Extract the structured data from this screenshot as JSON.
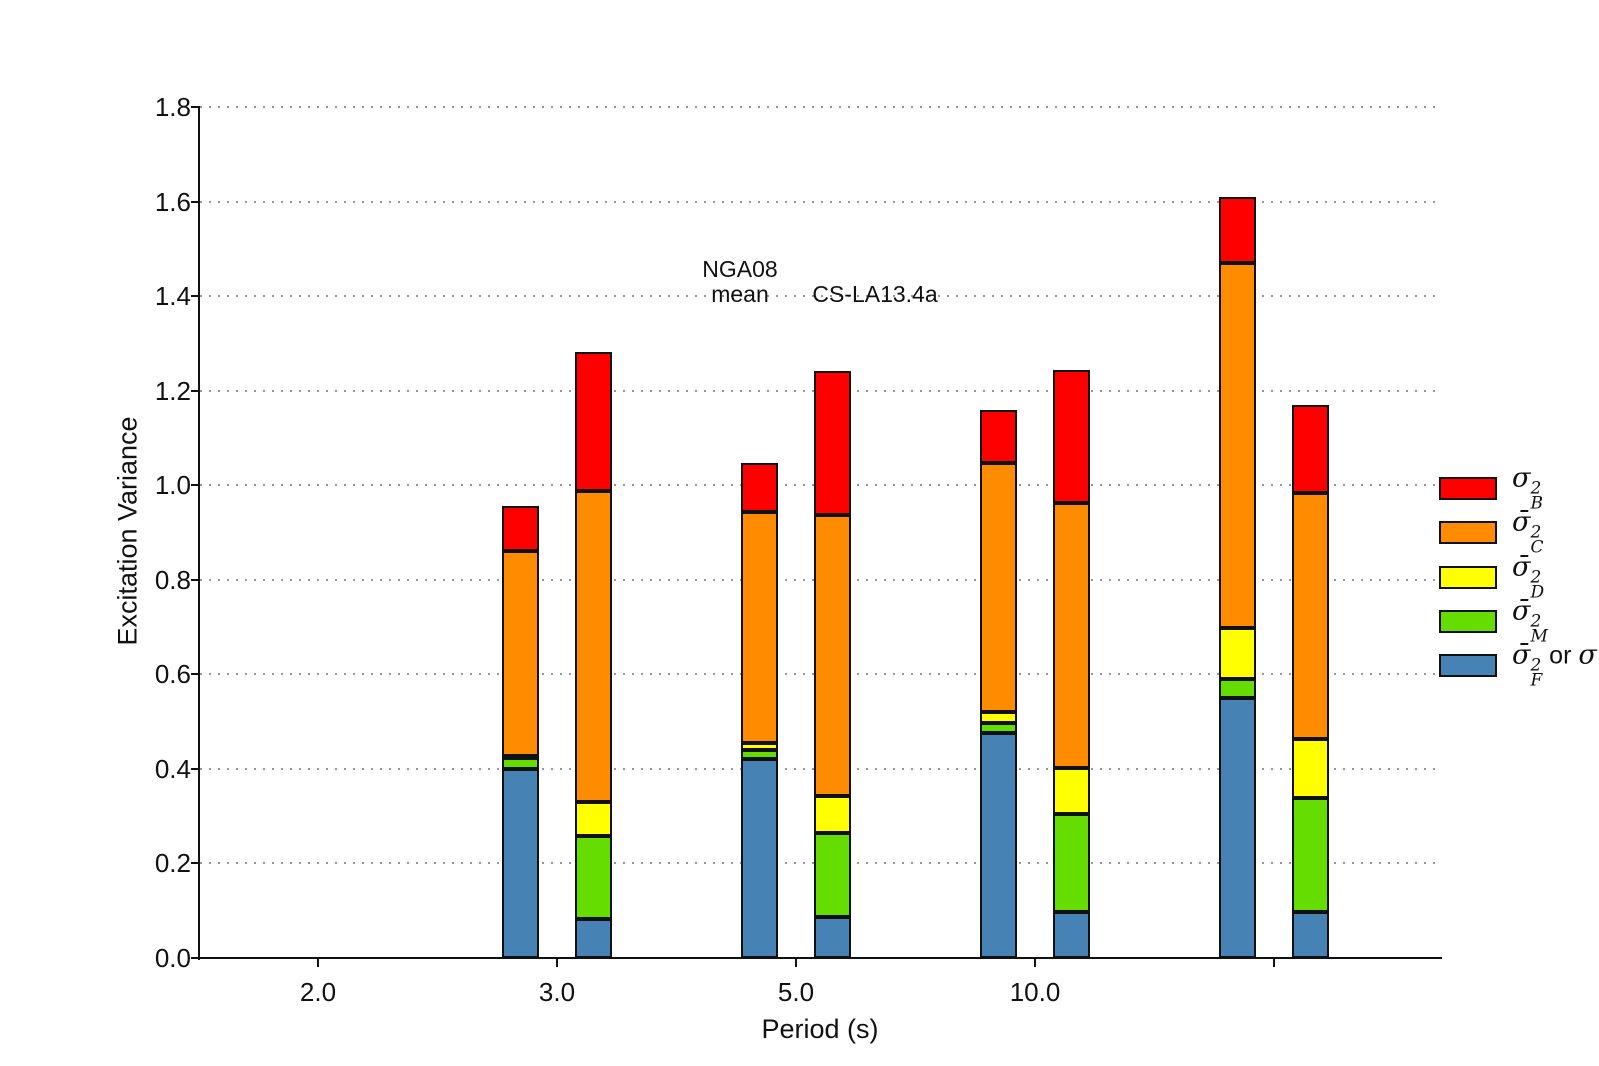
{
  "figure": {
    "y_axis": {
      "label": "Excitation Variance",
      "tick_labels": [
        "0.0",
        "0.2",
        "0.4",
        "0.6",
        "0.8",
        "1.0",
        "1.2",
        "1.4",
        "1.6",
        "1.8"
      ]
    },
    "x_axis": {
      "label": "Period (s)",
      "tick_labels": [
        "2.0",
        "3.0",
        "5.0",
        "10.0",
        ""
      ]
    },
    "annotations": [
      {
        "text": "NGA08\nmean"
      },
      {
        "text": "CS-LA13.4a"
      }
    ],
    "legend": {
      "items": [
        {
          "key": "sigma2_B",
          "color": "#FE0000",
          "sigma": "σ",
          "sup": "2",
          "sub": "B",
          "suffix_text": "",
          "suffix_sigma": ""
        },
        {
          "key": "sigma2_C",
          "color": "#FF8C00",
          "sigma": "σ̄",
          "sup": "2",
          "sub": "C",
          "suffix_text": "",
          "suffix_sigma": ""
        },
        {
          "key": "sigma2_D",
          "color": "#FFFF00",
          "sigma": "σ̄",
          "sup": "2",
          "sub": "D",
          "suffix_text": "",
          "suffix_sigma": ""
        },
        {
          "key": "sigma2_M",
          "color": "#66DD00",
          "sigma": "σ̄",
          "sup": "2",
          "sub": "M",
          "suffix_text": "",
          "suffix_sigma": ""
        },
        {
          "key": "sigma2_F",
          "color": "#4682B4",
          "sigma": "σ̄",
          "sup": "2",
          "sub": "F",
          "suffix_text": " or ",
          "suffix_sigma": "σ"
        }
      ]
    }
  },
  "chart_data": {
    "type": "bar",
    "stacked": true,
    "title": "",
    "xlabel": "Period (s)",
    "ylabel": "Excitation Variance",
    "ylim": [
      0,
      1.8
    ],
    "ytick_step": 0.2,
    "grid": "horizontal dotted",
    "legend_position": "outside right",
    "categories": [
      "2.0",
      "3.0",
      "5.0",
      "10.0",
      ""
    ],
    "series_labels": [
      "NGA08 mean",
      "CS-LA13.4a"
    ],
    "stack_order": [
      "sigma2_F",
      "sigma2_M",
      "sigma2_D",
      "sigma2_C",
      "sigma2_B"
    ],
    "colors": {
      "sigma2_B": "#FE0000",
      "sigma2_C": "#FF8C00",
      "sigma2_D": "#FFFF00",
      "sigma2_M": "#66DD00",
      "sigma2_F": "#4682B4"
    },
    "groups": [
      {
        "category": "2.0",
        "bars": []
      },
      {
        "category": "3.0",
        "bars": [
          {
            "series": "NGA08 mean",
            "total": 0.957,
            "segments": {
              "sigma2_F": 0.4,
              "sigma2_M": 0.022,
              "sigma2_D": 0.005,
              "sigma2_C": 0.433,
              "sigma2_B": 0.097
            }
          },
          {
            "series": "CS-LA13.4a",
            "total": 1.282,
            "segments": {
              "sigma2_F": 0.082,
              "sigma2_M": 0.177,
              "sigma2_D": 0.07,
              "sigma2_C": 0.659,
              "sigma2_B": 0.294
            }
          }
        ]
      },
      {
        "category": "5.0",
        "bars": [
          {
            "series": "NGA08 mean",
            "total": 1.048,
            "segments": {
              "sigma2_F": 0.42,
              "sigma2_M": 0.02,
              "sigma2_D": 0.015,
              "sigma2_C": 0.489,
              "sigma2_B": 0.104
            }
          },
          {
            "series": "CS-LA13.4a",
            "total": 1.242,
            "segments": {
              "sigma2_F": 0.087,
              "sigma2_M": 0.177,
              "sigma2_D": 0.079,
              "sigma2_C": 0.594,
              "sigma2_B": 0.305
            }
          }
        ]
      },
      {
        "category": "10.0",
        "bars": [
          {
            "series": "NGA08 mean",
            "total": 1.16,
            "segments": {
              "sigma2_F": 0.475,
              "sigma2_M": 0.023,
              "sigma2_D": 0.023,
              "sigma2_C": 0.525,
              "sigma2_B": 0.114
            }
          },
          {
            "series": "CS-LA13.4a",
            "total": 1.243,
            "segments": {
              "sigma2_F": 0.098,
              "sigma2_M": 0.207,
              "sigma2_D": 0.096,
              "sigma2_C": 0.562,
              "sigma2_B": 0.28
            }
          }
        ]
      },
      {
        "category": "",
        "bars": [
          {
            "series": "NGA08 mean",
            "total": 1.61,
            "segments": {
              "sigma2_F": 0.549,
              "sigma2_M": 0.041,
              "sigma2_D": 0.107,
              "sigma2_C": 0.774,
              "sigma2_B": 0.139
            }
          },
          {
            "series": "CS-LA13.4a",
            "total": 1.17,
            "segments": {
              "sigma2_F": 0.098,
              "sigma2_M": 0.241,
              "sigma2_D": 0.124,
              "sigma2_C": 0.52,
              "sigma2_B": 0.187
            }
          }
        ]
      }
    ]
  }
}
